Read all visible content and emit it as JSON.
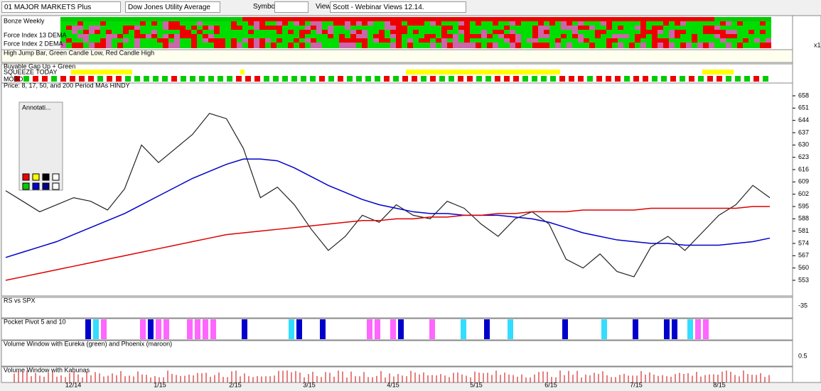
{
  "toolbar": {
    "list": "01 MAJOR MARKETS Plus",
    "symbol_name": "Dow Jones Utility Average",
    "symbol_label": "Symbol:",
    "view_label": "View:",
    "view": "Scott - Webinar Views 12.14."
  },
  "annotation_title": "Annotati...",
  "strip_labels": [
    "Bonze Weekly",
    "Force Index 13 DEMA",
    "Force Index 2 DEMA"
  ],
  "strip_scale": "x1",
  "pane_labels": {
    "high_jump": "High Jump Bar, Green Candle Low, Red Candle High",
    "gap": "Buyable Gap Up + Green",
    "squeeze": "SQUEEZE TODAY",
    "mobo": "MOBO",
    "rs": "RS vs SPX",
    "pivot": "Pocket Pivot 5 and 10",
    "volume": "Volume Window with Eureka (green) and Phoenix (maroon)",
    "kahunas": "Volume Window with Kahunas"
  },
  "rs_tick": "-35",
  "volume_tick": "0.5",
  "chart_data": {
    "type": "line",
    "title": "Price: 8, 17, 50, and 200 Period MAs HINDY",
    "x_labels": [
      "12/14",
      "1/15",
      "2/15",
      "3/15",
      "4/15",
      "5/15",
      "6/15",
      "7/15",
      "8/15"
    ],
    "ylim": [
      548,
      661
    ],
    "yticks": [
      658,
      651,
      644,
      637,
      630,
      623,
      616,
      609,
      602,
      595,
      588,
      581,
      574,
      567,
      560,
      553
    ],
    "series": [
      {
        "color": "#222222",
        "values": [
          604,
          598,
          592,
          596,
          600,
          598,
          593,
          605,
          630,
          620,
          628,
          636,
          648,
          645,
          628,
          600,
          606,
          596,
          582,
          570,
          578,
          590,
          586,
          596,
          590,
          588,
          598,
          594,
          585,
          578,
          588,
          592,
          585,
          565,
          560,
          568,
          558,
          555,
          572,
          578,
          570,
          580,
          590,
          596,
          607,
          600
        ]
      },
      {
        "color": "#0000cc",
        "values": [
          566,
          569,
          572,
          575,
          579,
          583,
          587,
          591,
          596,
          601,
          606,
          611,
          615,
          619,
          622,
          622,
          621,
          617,
          612,
          607,
          603,
          599,
          596,
          594,
          592,
          591,
          591,
          590,
          590,
          590,
          589,
          588,
          586,
          583,
          580,
          578,
          576,
          575,
          574,
          574,
          573,
          573,
          573,
          574,
          575,
          577
        ]
      },
      {
        "color": "#dd0000",
        "values": [
          553,
          555,
          557,
          559,
          561,
          563,
          565,
          567,
          569,
          571,
          573,
          575,
          577,
          579,
          580,
          581,
          582,
          583,
          584,
          585,
          586,
          587,
          587,
          588,
          588,
          589,
          589,
          590,
          590,
          591,
          591,
          592,
          592,
          592,
          593,
          593,
          593,
          593,
          594,
          594,
          594,
          594,
          594,
          594,
          595,
          595
        ]
      }
    ]
  }
}
